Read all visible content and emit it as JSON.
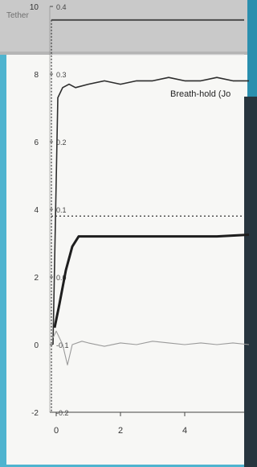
{
  "app": {
    "title": "Tether"
  },
  "colors": {
    "background": "#4fb4cf",
    "panel": "#f7f7f5",
    "header": "#c9c9c9",
    "trace_dark": "#2d2d2d",
    "trace_light": "#9a9a9a"
  },
  "chart_data": {
    "type": "line",
    "title": "",
    "xlabel": "",
    "ylabel": "",
    "legend_text": "Breath-hold (Jo",
    "xlim": [
      -0.5,
      6
    ],
    "ylim_outer": [
      -2,
      10
    ],
    "ylim_inner": [
      -0.2,
      0.4
    ],
    "x_ticks": [
      0,
      2,
      4
    ],
    "y_ticks_outer": [
      10,
      8,
      6,
      4,
      2,
      0,
      -2
    ],
    "y_ticks_inner": [
      "0.4",
      "0.3",
      "0.2",
      "0.1",
      "0.0",
      "-0.1",
      "-0.2"
    ],
    "reference_lines": {
      "upper_outer": 9.6,
      "threshold_outer": 3.8,
      "vertical_x": -0.15
    },
    "series": [
      {
        "axis": "outer",
        "style": "dark",
        "x": [
          -0.1,
          0.05,
          0.2,
          0.4,
          0.6,
          1,
          1.5,
          2,
          2.5,
          3,
          3.5,
          4,
          4.5,
          5,
          5.5,
          6
        ],
        "y": [
          0,
          7.3,
          7.6,
          7.7,
          7.6,
          7.7,
          7.8,
          7.7,
          7.8,
          7.8,
          7.9,
          7.8,
          7.8,
          7.9,
          7.8,
          7.8
        ]
      },
      {
        "axis": "outer",
        "style": "dark-thick",
        "x": [
          -0.05,
          0.1,
          0.3,
          0.5,
          0.7,
          1,
          2,
          3,
          4,
          5,
          6
        ],
        "y": [
          0.5,
          1.2,
          2.2,
          2.9,
          3.2,
          3.2,
          3.2,
          3.2,
          3.2,
          3.2,
          3.25
        ]
      },
      {
        "axis": "outer",
        "style": "light",
        "x": [
          -0.1,
          0,
          0.2,
          0.35,
          0.5,
          0.8,
          1,
          1.5,
          2,
          2.5,
          3,
          3.5,
          4,
          4.5,
          5,
          5.5,
          6
        ],
        "y": [
          0.2,
          0.4,
          0,
          -0.6,
          0,
          0.1,
          0.05,
          -0.05,
          0.05,
          0,
          0.1,
          0.05,
          0,
          0.05,
          0,
          0.05,
          0
        ]
      }
    ]
  }
}
